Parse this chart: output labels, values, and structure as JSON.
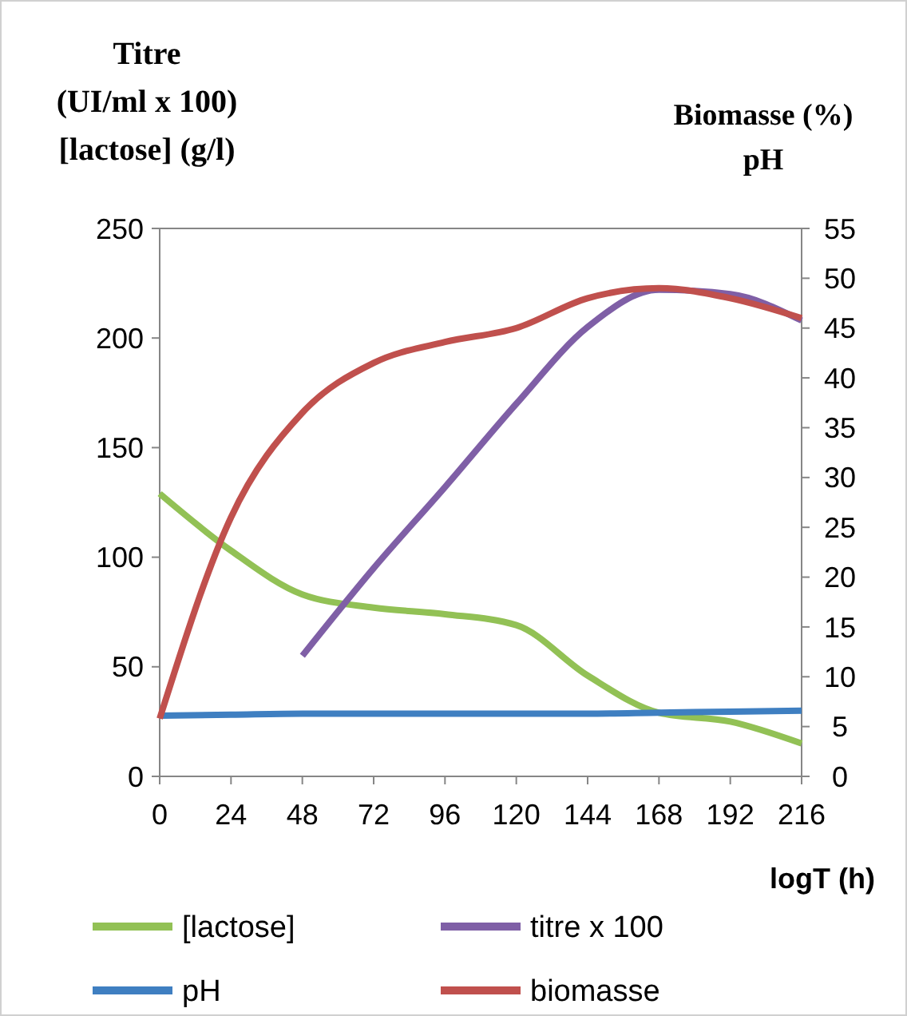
{
  "chart_data": {
    "type": "line",
    "ylabel": "Titre\n(UI/ml x 100)\n[lactose] (g/l)",
    "y2label": "Biomasse (%)\npH",
    "xlabel": "logT (h)",
    "x": [
      0,
      24,
      48,
      72,
      96,
      120,
      144,
      168,
      192,
      216
    ],
    "xlim": [
      0,
      216
    ],
    "xticks": [
      0,
      24,
      48,
      72,
      96,
      120,
      144,
      168,
      192,
      216
    ],
    "ylim": [
      0,
      250
    ],
    "yticks": [
      0,
      50,
      100,
      150,
      200,
      250
    ],
    "y2lim": [
      0,
      55
    ],
    "y2ticks": [
      0,
      5,
      10,
      15,
      20,
      25,
      30,
      35,
      40,
      45,
      50,
      55
    ],
    "legend": "bottom",
    "grid": false,
    "marker": "none",
    "line_style": "solid",
    "series": [
      {
        "name": "[lactose]",
        "color": "#92c155",
        "values": [
          129,
          103,
          83,
          77,
          74,
          69,
          46,
          29,
          25,
          15
        ]
      },
      {
        "name": "titre x 100",
        "color": "#7f5fa6",
        "values": [
          null,
          null,
          55,
          95,
          132,
          170,
          205,
          222,
          220,
          208
        ]
      },
      {
        "name": "pH",
        "color": "#3f7fc1",
        "axis": "y2",
        "values": [
          6.1,
          6.2,
          6.3,
          6.3,
          6.3,
          6.3,
          6.3,
          6.4,
          6.5,
          6.6
        ]
      },
      {
        "name": "biomasse",
        "color": "#c0504d",
        "axis": "y2",
        "values": [
          5.8,
          26,
          36.5,
          41.5,
          43.6,
          45,
          48,
          49,
          48,
          46
        ]
      }
    ]
  }
}
